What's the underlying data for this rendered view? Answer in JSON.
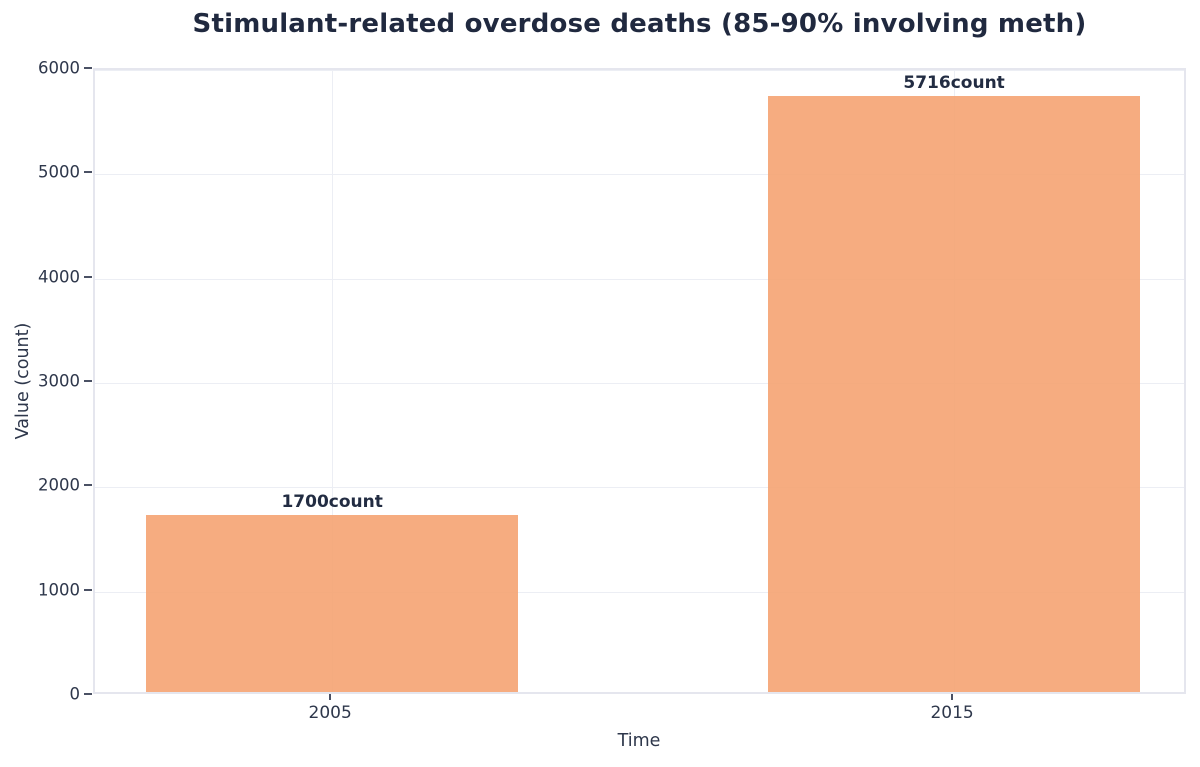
{
  "chart_data": {
    "type": "bar",
    "title": "Stimulant-related overdose deaths (85-90% involving meth)",
    "xlabel": "Time",
    "ylabel": "Value (count)",
    "categories": [
      "2005",
      "2015"
    ],
    "values": [
      1700,
      5716
    ],
    "bar_labels": [
      "1700count",
      "5716count"
    ],
    "ylim": [
      0,
      6000
    ],
    "yticks": [
      "0",
      "1000",
      "2000",
      "3000",
      "4000",
      "5000",
      "6000"
    ],
    "grid": true,
    "legend": false,
    "bar_centers_frac": [
      0.217,
      0.786
    ],
    "bar_width_frac": 0.34,
    "colors": {
      "bar": "#F6AC80",
      "title_text": "#20293F",
      "tick_text": "#2E374B",
      "gridline": "#ECEEF4",
      "plot_border": "#E5E6EE",
      "background": "#FFFFFF"
    }
  }
}
